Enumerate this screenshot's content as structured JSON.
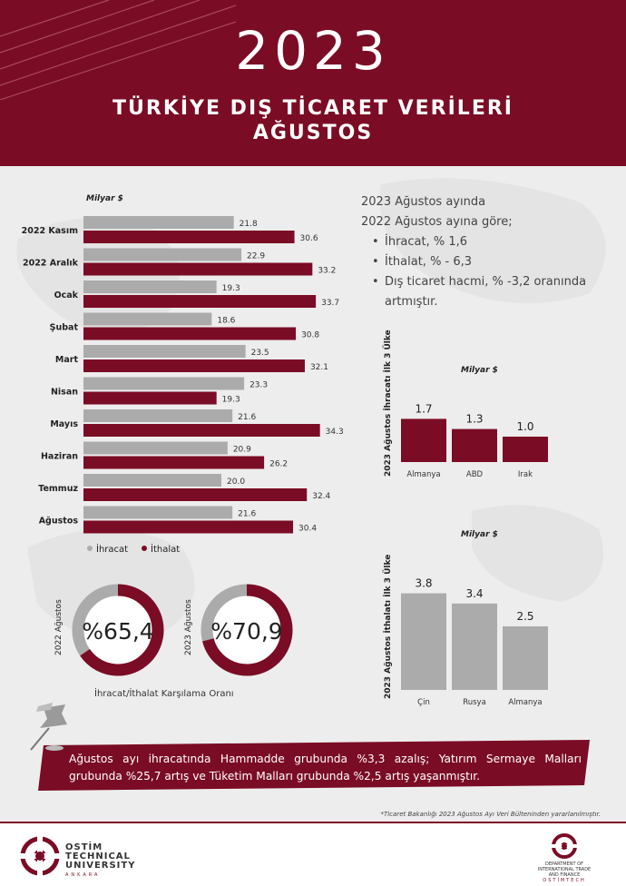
{
  "header": {
    "year": "2023",
    "title_line1": "TÜRKİYE DIŞ TİCARET VERİLERİ",
    "title_line2": "AĞUSTOS"
  },
  "colors": {
    "maroon": "#7b0c25",
    "gray": "#ababab"
  },
  "summary": {
    "line1": "2023 Ağustos ayında",
    "line2": "2022  Ağustos ayına göre;",
    "bullets": [
      "İhracat, % 1,6",
      "İthalat, % - 6,3",
      "Dış ticaret hacmi, % -3,2 oranında artmıştır."
    ]
  },
  "chart_data": [
    {
      "type": "bar",
      "orientation": "horizontal",
      "unit_label": "Milyar $",
      "categories": [
        "2022 Kasım",
        "2022 Aralık",
        "Ocak",
        "Şubat",
        "Mart",
        "Nisan",
        "Mayıs",
        "Haziran",
        "Temmuz",
        "Ağustos"
      ],
      "series": [
        {
          "name": "İhracat",
          "color": "#ababab",
          "values": [
            21.8,
            22.9,
            19.3,
            18.6,
            23.5,
            23.3,
            21.6,
            20.9,
            20.0,
            21.6
          ]
        },
        {
          "name": "İthalat",
          "color": "#7b0c25",
          "values": [
            30.6,
            33.2,
            33.7,
            30.8,
            32.1,
            19.3,
            34.3,
            26.2,
            32.4,
            30.4
          ]
        }
      ],
      "legend": "bottom-left"
    },
    {
      "type": "pie",
      "subtype": "donut",
      "caption": "İhracat/İthalat Karşılama Oranı",
      "items": [
        {
          "label": "2022 Ağustos",
          "value_text": "%65,4",
          "value": 65.4
        },
        {
          "label": "2023 Ağustos",
          "value_text": "%70,9",
          "value": 70.9
        }
      ]
    },
    {
      "type": "bar",
      "side_label": "2023 Ağustos İhracatı İlk 3 Ülke",
      "unit_label": "Milyar $",
      "categories": [
        "Almanya",
        "ABD",
        "Irak"
      ],
      "values": [
        1.7,
        1.3,
        1.0
      ],
      "value_labels": [
        "1.7",
        "1.3",
        "1.0"
      ],
      "color": "#7b0c25"
    },
    {
      "type": "bar",
      "side_label": "2023 Ağustos İthalatı İlk 3 Ülke",
      "unit_label": "Milyar $",
      "categories": [
        "Çin",
        "Rusya",
        "Almanya"
      ],
      "values": [
        3.8,
        3.4,
        2.5
      ],
      "value_labels": [
        "3.8",
        "3.4",
        "2.5"
      ],
      "color": "#ababab"
    }
  ],
  "banner": {
    "text": "Ağustos ayı ihracatında Hammadde grubunda %3,3 azalış; Yatırım Sermaye Malları grubunda %25,7 artış ve Tüketim Malları grubunda %2,5 artış yaşanmıştır."
  },
  "footnote": "*Ticaret Bakanlığı 2023 Ağustos Ayı Veri Bülteninden yararlanılmıştır.",
  "footer": {
    "left_logo_line1": "OSTİM",
    "left_logo_line2": "TECHNICAL",
    "left_logo_line3": "UNIVERSITY",
    "left_logo_sub": "ANKARA",
    "right_logo_line1": "DEPARTMENT OF",
    "right_logo_line2": "INTERNATIONAL TRADE",
    "right_logo_line3": "AND FINANCE",
    "right_logo_sub": "OSTİMTECH"
  }
}
